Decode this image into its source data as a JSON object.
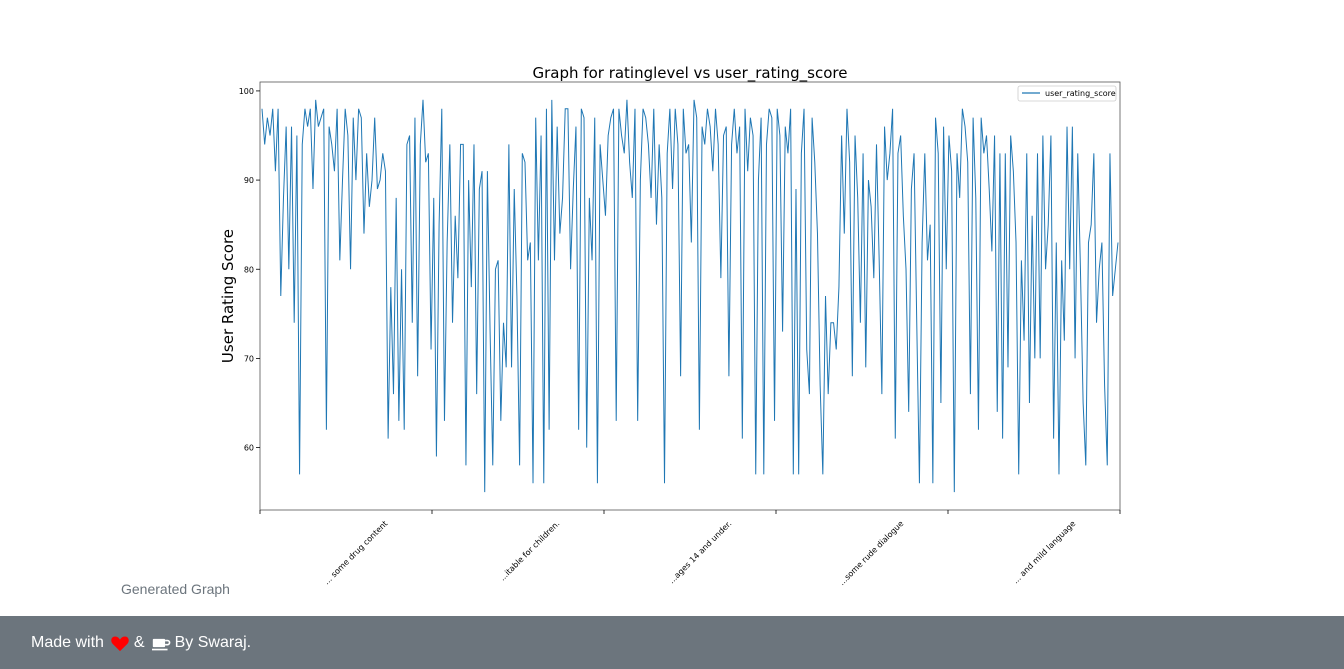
{
  "caption": "Generated Graph",
  "footer": {
    "made_with": "Made with",
    "amp": "&",
    "by": "By Swaraj.",
    "heart_icon": "heart-icon",
    "coffee_icon": "coffee-icon",
    "heart_color": "#ff0000"
  },
  "chart_data": {
    "type": "line",
    "title": "Graph for ratinglevel vs user_rating_score",
    "xlabel": "",
    "ylabel": "User Rating Score",
    "ylim": [
      53,
      101
    ],
    "yticks": [
      60,
      70,
      80,
      90,
      100
    ],
    "xtick_labels": [
      "... some drug content",
      "...itable for children.",
      "...ages 14 and under.",
      "...some rude dialogue",
      "... and mild language"
    ],
    "legend": "top-right",
    "grid": false,
    "series": [
      {
        "name": "user_rating_score",
        "color": "#1f77b4",
        "values": [
          98,
          94,
          97,
          95,
          98,
          91,
          98,
          77,
          88,
          96,
          80,
          96,
          74,
          95,
          57,
          94,
          98,
          96,
          98,
          89,
          99,
          96,
          97,
          98,
          62,
          96,
          94,
          91,
          98,
          81,
          90,
          98,
          95,
          80,
          97,
          90,
          98,
          97,
          84,
          93,
          87,
          90,
          97,
          89,
          90,
          93,
          91,
          61,
          78,
          66,
          88,
          63,
          80,
          62,
          94,
          95,
          74,
          97,
          68,
          94,
          99,
          92,
          93,
          71,
          88,
          59,
          85,
          98,
          63,
          83,
          94,
          74,
          86,
          79,
          94,
          94,
          58,
          90,
          78,
          94,
          66,
          89,
          91,
          55,
          91,
          73,
          58,
          80,
          81,
          63,
          74,
          69,
          94,
          69,
          89,
          77,
          58,
          93,
          92,
          81,
          83,
          56,
          97,
          81,
          95,
          56,
          98,
          62,
          99,
          81,
          96,
          84,
          88,
          98,
          98,
          80,
          89,
          96,
          62,
          98,
          97,
          60,
          88,
          81,
          97,
          56,
          94,
          90,
          86,
          95,
          97,
          98,
          63,
          98,
          95,
          93,
          99,
          92,
          88,
          98,
          63,
          90,
          98,
          97,
          94,
          88,
          98,
          85,
          94,
          88,
          56,
          93,
          98,
          89,
          98,
          94,
          68,
          98,
          93,
          94,
          83,
          99,
          97,
          62,
          96,
          94,
          98,
          96,
          91,
          98,
          94,
          79,
          95,
          96,
          68,
          94,
          98,
          93,
          96,
          61,
          98,
          91,
          97,
          95,
          57,
          90,
          97,
          57,
          94,
          98,
          97,
          63,
          98,
          95,
          73,
          96,
          93,
          98,
          57,
          89,
          57,
          93,
          98,
          71,
          66,
          97,
          92,
          84,
          67,
          57,
          77,
          66,
          74,
          74,
          71,
          78,
          95,
          84,
          98,
          92,
          68,
          95,
          88,
          74,
          93,
          69,
          90,
          87,
          79,
          94,
          81,
          66,
          96,
          90,
          93,
          98,
          61,
          93,
          95,
          86,
          80,
          64,
          89,
          93,
          74,
          56,
          83,
          93,
          81,
          85,
          56,
          97,
          93,
          65,
          96,
          80,
          95,
          91,
          55,
          93,
          88,
          98,
          96,
          92,
          66,
          97,
          88,
          62,
          97,
          93,
          95,
          89,
          82,
          95,
          64,
          93,
          61,
          93,
          69,
          95,
          91,
          83,
          57,
          81,
          72,
          93,
          65,
          86,
          70,
          93,
          70,
          95,
          80,
          85,
          95,
          61,
          83,
          57,
          81,
          72,
          96,
          80,
          96,
          70,
          93,
          80,
          65,
          58,
          83,
          85,
          93,
          74,
          80,
          83,
          67,
          58,
          93,
          77,
          80,
          83
        ]
      }
    ]
  }
}
